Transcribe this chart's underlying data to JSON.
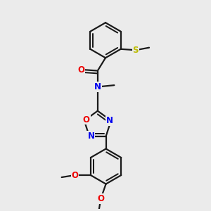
{
  "bg_color": "#ebebeb",
  "bond_color": "#1a1a1a",
  "bond_width": 1.6,
  "atom_colors": {
    "N": "#0000ee",
    "O": "#ee0000",
    "S": "#bbbb00",
    "C": "#1a1a1a"
  },
  "font_size_atom": 8.5
}
